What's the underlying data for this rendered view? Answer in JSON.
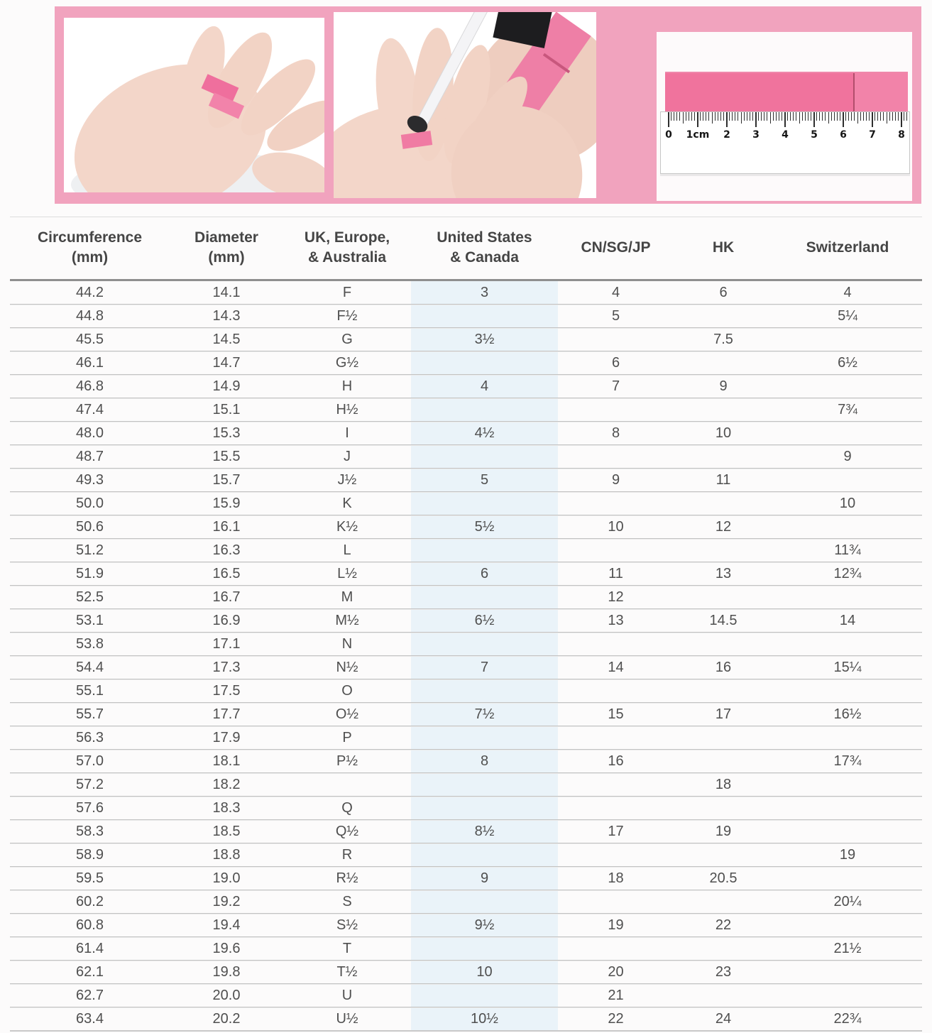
{
  "banner": {
    "background": "#f1a3be",
    "photo_steps": [
      {
        "name": "wrap-strip-around-finger"
      },
      {
        "name": "mark-strip-with-pen"
      },
      {
        "name": "measure-strip-with-ruler"
      }
    ],
    "ruler": {
      "unit_labels": [
        "0",
        "1cm",
        "2",
        "3",
        "4",
        "5",
        "6",
        "7",
        "8"
      ]
    }
  },
  "table": {
    "headers": [
      "Circumference\n(mm)",
      "Diameter\n(mm)",
      "UK, Europe,\n& Australia",
      "United States\n& Canada",
      "CN/SG/JP",
      "HK",
      "Switzerland"
    ],
    "us_canada_column_index": 3,
    "rows": [
      [
        "44.2",
        "14.1",
        "F",
        "3",
        "4",
        "6",
        "4"
      ],
      [
        "44.8",
        "14.3",
        "F½",
        "",
        "5",
        "",
        "5¼"
      ],
      [
        "45.5",
        "14.5",
        "G",
        "3½",
        "",
        "7.5",
        ""
      ],
      [
        "46.1",
        "14.7",
        "G½",
        "",
        "6",
        "",
        "6½"
      ],
      [
        "46.8",
        "14.9",
        "H",
        "4",
        "7",
        "9",
        ""
      ],
      [
        "47.4",
        "15.1",
        "H½",
        "",
        "",
        "",
        "7¾"
      ],
      [
        "48.0",
        "15.3",
        "I",
        "4½",
        "8",
        "10",
        ""
      ],
      [
        "48.7",
        "15.5",
        "J",
        "",
        "",
        "",
        "9"
      ],
      [
        "49.3",
        "15.7",
        "J½",
        "5",
        "9",
        "11",
        ""
      ],
      [
        "50.0",
        "15.9",
        "K",
        "",
        "",
        "",
        "10"
      ],
      [
        "50.6",
        "16.1",
        "K½",
        "5½",
        "10",
        "12",
        ""
      ],
      [
        "51.2",
        "16.3",
        "L",
        "",
        "",
        "",
        "11¾"
      ],
      [
        "51.9",
        "16.5",
        "L½",
        "6",
        "11",
        "13",
        "12¾"
      ],
      [
        "52.5",
        "16.7",
        "M",
        "",
        "12",
        "",
        ""
      ],
      [
        "53.1",
        "16.9",
        "M½",
        "6½",
        "13",
        "14.5",
        "14"
      ],
      [
        "53.8",
        "17.1",
        "N",
        "",
        "",
        "",
        ""
      ],
      [
        "54.4",
        "17.3",
        "N½",
        "7",
        "14",
        "16",
        "15¼"
      ],
      [
        "55.1",
        "17.5",
        "O",
        "",
        "",
        "",
        ""
      ],
      [
        "55.7",
        "17.7",
        "O½",
        "7½",
        "15",
        "17",
        "16½"
      ],
      [
        "56.3",
        "17.9",
        "P",
        "",
        "",
        "",
        ""
      ],
      [
        "57.0",
        "18.1",
        "P½",
        "8",
        "16",
        "",
        "17¾"
      ],
      [
        "57.2",
        "18.2",
        "",
        "",
        "",
        "18",
        ""
      ],
      [
        "57.6",
        "18.3",
        "Q",
        "",
        "",
        "",
        ""
      ],
      [
        "58.3",
        "18.5",
        "Q½",
        "8½",
        "17",
        "19",
        ""
      ],
      [
        "58.9",
        "18.8",
        "R",
        "",
        "",
        "",
        "19"
      ],
      [
        "59.5",
        "19.0",
        "R½",
        "9",
        "18",
        "20.5",
        ""
      ],
      [
        "60.2",
        "19.2",
        "S",
        "",
        "",
        "",
        "20¼"
      ],
      [
        "60.8",
        "19.4",
        "S½",
        "9½",
        "19",
        "22",
        ""
      ],
      [
        "61.4",
        "19.6",
        "T",
        "",
        "",
        "",
        "21½"
      ],
      [
        "62.1",
        "19.8",
        "T½",
        "10",
        "20",
        "23",
        ""
      ],
      [
        "62.7",
        "20.0",
        "U",
        "",
        "21",
        "",
        ""
      ],
      [
        "63.4",
        "20.2",
        "U½",
        "10½",
        "22",
        "24",
        "22¾"
      ]
    ]
  },
  "colors": {
    "banner_pink": "#f1a3be",
    "strip_pink": "#f0739d",
    "strip_mark": "#b24e6c",
    "us_column_bg": "#eaf3f9",
    "header_text": "#454545",
    "cell_text": "#4f4f4f"
  }
}
